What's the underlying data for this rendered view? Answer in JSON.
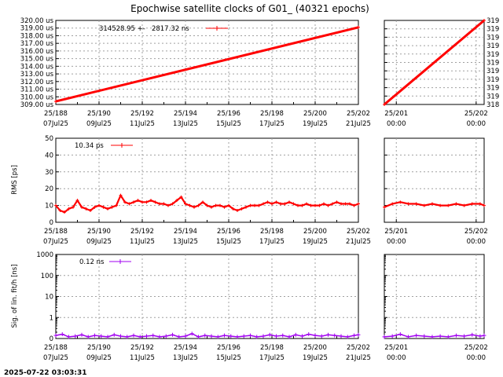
{
  "title": "Epochwise satellite clocks of G01_ (40321 epochs)",
  "timestamp": "2025-07-22 03:03:31",
  "colors": {
    "red": "#ff0000",
    "purple": "#a000f0",
    "grid": "#a0a0a0"
  },
  "x_ticks_main": {
    "days": [
      188,
      190,
      192,
      194,
      196,
      198,
      200,
      202
    ],
    "top": [
      "25/188",
      "25/190",
      "25/192",
      "25/194",
      "25/196",
      "25/198",
      "25/200",
      "25/202"
    ],
    "bottom": [
      "07Jul25",
      "09Jul25",
      "11Jul25",
      "13Jul25",
      "15Jul25",
      "17Jul25",
      "19Jul25",
      "21Jul25"
    ]
  },
  "x_ticks_zoom": {
    "days": [
      201,
      202
    ],
    "top": [
      "25/201",
      "25/202"
    ],
    "bottom": [
      "00:00",
      "00:00"
    ]
  },
  "chart_data": [
    {
      "type": "line",
      "ylabel": "",
      "xlim": [
        188,
        202
      ],
      "ylim": [
        309,
        320
      ],
      "ytick_labels": [
        "309.00 us",
        "310.00 us",
        "311.00 us",
        "312.00 us",
        "313.00 us",
        "314.00 us",
        "315.00 us",
        "316.00 us",
        "317.00 us",
        "318.00 us",
        "319.00 us",
        "320.00 us"
      ],
      "yticks": [
        309,
        310,
        311,
        312,
        313,
        314,
        315,
        316,
        317,
        318,
        319,
        320
      ],
      "legend": {
        "text": "314528.95 +-   2817.32 ns",
        "placement": "top-left"
      },
      "series": [
        {
          "color": "#ff0000",
          "x": [
            188.0,
            202.0
          ],
          "y": [
            309.4,
            319.1
          ]
        }
      ]
    },
    {
      "type": "line",
      "ylabel": "",
      "xlim": [
        200.85,
        202.1
      ],
      "ylim": [
        318.2,
        319.5
      ],
      "ytick_labels": [
        "318",
        "319",
        "319",
        "319",
        "319",
        "319",
        "319",
        "319",
        "319",
        "319",
        "319"
      ],
      "yticks": [
        318.2,
        318.33,
        318.46,
        318.59,
        318.72,
        318.85,
        318.98,
        319.11,
        319.24,
        319.37,
        319.5
      ],
      "series": [
        {
          "color": "#ff0000",
          "x": [
            200.85,
            202.1
          ],
          "y": [
            318.2,
            319.5
          ]
        }
      ]
    },
    {
      "type": "line",
      "ylabel": "RMS [ps]",
      "xlim": [
        188,
        202
      ],
      "ylim": [
        0,
        50
      ],
      "ytick_labels": [
        "0",
        "10",
        "20",
        "30",
        "40",
        "50"
      ],
      "yticks": [
        0,
        10,
        20,
        30,
        40,
        50
      ],
      "legend": {
        "text": "10.34 ps",
        "placement": "top-left"
      },
      "series": [
        {
          "color": "#ff0000",
          "x": [
            188.0,
            188.2,
            188.4,
            188.6,
            188.8,
            189.0,
            189.2,
            189.4,
            189.6,
            189.8,
            190.0,
            190.2,
            190.4,
            190.6,
            190.8,
            191.0,
            191.2,
            191.4,
            191.6,
            191.8,
            192.0,
            192.2,
            192.4,
            192.6,
            192.8,
            193.0,
            193.2,
            193.4,
            193.6,
            193.8,
            194.0,
            194.2,
            194.4,
            194.6,
            194.8,
            195.0,
            195.2,
            195.4,
            195.6,
            195.8,
            196.0,
            196.2,
            196.4,
            196.6,
            196.8,
            197.0,
            197.2,
            197.4,
            197.6,
            197.8,
            198.0,
            198.2,
            198.4,
            198.6,
            198.8,
            199.0,
            199.2,
            199.4,
            199.6,
            199.8,
            200.0,
            200.2,
            200.4,
            200.6,
            200.8,
            201.0,
            201.2,
            201.4,
            201.6,
            201.8,
            202.0
          ],
          "y": [
            10,
            7,
            6,
            8,
            9,
            13,
            9,
            8,
            7,
            9,
            10,
            9,
            8,
            9,
            10,
            16,
            12,
            11,
            12,
            13,
            12,
            12,
            13,
            12,
            11,
            11,
            10,
            11,
            13,
            15,
            11,
            10,
            9,
            10,
            12,
            10,
            9,
            10,
            10,
            9,
            10,
            8,
            7,
            8,
            9,
            10,
            10,
            10,
            11,
            12,
            11,
            12,
            11,
            11,
            12,
            11,
            10,
            10,
            11,
            10,
            10,
            10,
            11,
            10,
            11,
            12,
            11,
            11,
            11,
            10,
            11
          ]
        }
      ]
    },
    {
      "type": "line",
      "ylabel": "",
      "xlim": [
        200.85,
        202.1
      ],
      "ylim": [
        0,
        50
      ],
      "ytick_labels": [],
      "yticks": [
        0,
        10,
        20,
        30,
        40,
        50
      ],
      "series": [
        {
          "color": "#ff0000",
          "x": [
            200.85,
            200.95,
            201.05,
            201.15,
            201.25,
            201.35,
            201.45,
            201.55,
            201.65,
            201.75,
            201.85,
            201.95,
            202.05,
            202.1
          ],
          "y": [
            9,
            11,
            12,
            11,
            11,
            10,
            11,
            10,
            10,
            11,
            10,
            11,
            11,
            10
          ]
        }
      ]
    },
    {
      "type": "scatter",
      "ylabel": "Sig. of lin. fit/h [ns]",
      "yscale": "log",
      "xlim": [
        188,
        202
      ],
      "ylim": [
        0.1,
        1000
      ],
      "ytick_labels": [
        "0",
        "1",
        "10",
        "100",
        "1000"
      ],
      "yticks": [
        0.1,
        1,
        10,
        100,
        1000
      ],
      "legend": {
        "text": "0.12 ns",
        "placement": "top-left"
      },
      "series": [
        {
          "color": "#a000f0",
          "x": [
            188.0,
            188.3,
            188.6,
            188.9,
            189.2,
            189.5,
            189.8,
            190.1,
            190.4,
            190.7,
            191.0,
            191.3,
            191.6,
            191.9,
            192.2,
            192.5,
            192.8,
            193.1,
            193.4,
            193.7,
            194.0,
            194.3,
            194.6,
            194.9,
            195.2,
            195.5,
            195.8,
            196.1,
            196.4,
            196.7,
            197.0,
            197.3,
            197.6,
            197.9,
            198.2,
            198.5,
            198.8,
            199.1,
            199.4,
            199.7,
            200.0,
            200.3,
            200.6,
            200.9,
            201.2,
            201.5,
            201.8,
            202.0
          ],
          "y": [
            0.14,
            0.16,
            0.12,
            0.13,
            0.15,
            0.12,
            0.14,
            0.13,
            0.12,
            0.15,
            0.13,
            0.12,
            0.14,
            0.12,
            0.13,
            0.14,
            0.12,
            0.13,
            0.15,
            0.12,
            0.13,
            0.17,
            0.12,
            0.14,
            0.13,
            0.12,
            0.14,
            0.13,
            0.12,
            0.13,
            0.14,
            0.12,
            0.13,
            0.15,
            0.13,
            0.14,
            0.12,
            0.15,
            0.13,
            0.16,
            0.14,
            0.13,
            0.15,
            0.14,
            0.13,
            0.12,
            0.14,
            0.15
          ]
        }
      ]
    },
    {
      "type": "scatter",
      "ylabel": "",
      "yscale": "log",
      "xlim": [
        200.85,
        202.1
      ],
      "ylim": [
        0.1,
        1000
      ],
      "ytick_labels": [],
      "yticks": [
        0.1,
        1,
        10,
        100,
        1000
      ],
      "series": [
        {
          "color": "#a000f0",
          "x": [
            200.85,
            200.95,
            201.05,
            201.15,
            201.25,
            201.35,
            201.45,
            201.55,
            201.65,
            201.75,
            201.85,
            201.95,
            202.05,
            202.1
          ],
          "y": [
            0.12,
            0.13,
            0.16,
            0.12,
            0.14,
            0.13,
            0.12,
            0.13,
            0.12,
            0.14,
            0.13,
            0.15,
            0.13,
            0.14
          ]
        }
      ]
    }
  ]
}
